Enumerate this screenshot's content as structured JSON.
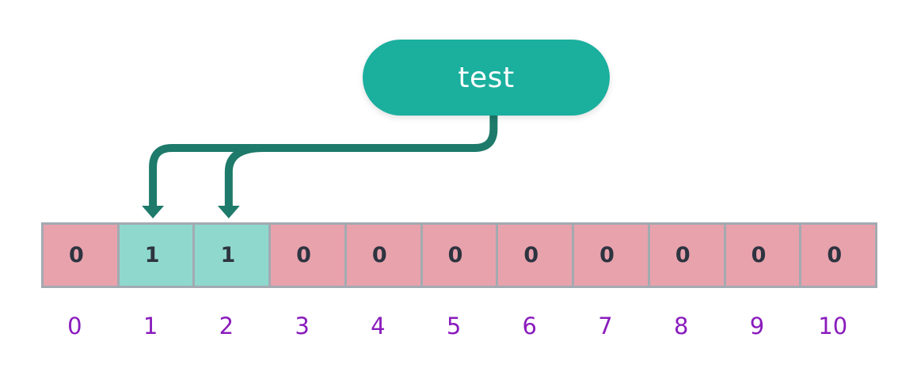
{
  "hash_node": {
    "label": "test"
  },
  "bits": [
    {
      "value": "0",
      "set": false
    },
    {
      "value": "1",
      "set": true
    },
    {
      "value": "1",
      "set": true
    },
    {
      "value": "0",
      "set": false
    },
    {
      "value": "0",
      "set": false
    },
    {
      "value": "0",
      "set": false
    },
    {
      "value": "0",
      "set": false
    },
    {
      "value": "0",
      "set": false
    },
    {
      "value": "0",
      "set": false
    },
    {
      "value": "0",
      "set": false
    },
    {
      "value": "0",
      "set": false
    }
  ],
  "indices": [
    "0",
    "1",
    "2",
    "3",
    "4",
    "5",
    "6",
    "7",
    "8",
    "9",
    "10"
  ],
  "arrow_targets": [
    1,
    2
  ],
  "colors": {
    "pill": "#1baf9e",
    "connector": "#1e7a6a",
    "set_cell": "#8fd8cd",
    "unset_cell": "#e8a2ac",
    "grid_border": "#a3aab1",
    "cell_text": "#2d3440",
    "index_text": "#8a1cbd"
  }
}
